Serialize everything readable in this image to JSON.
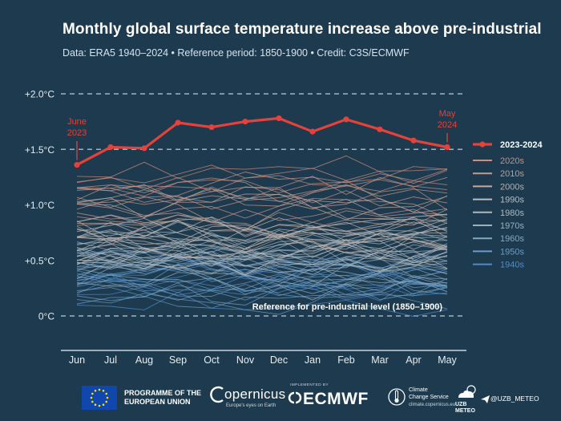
{
  "header": {
    "title": "Monthly global surface temperature increase above pre-industrial",
    "subtitle": "Data: ERA5 1940–2024  •  Reference period: 1850-1900  •  Credit: C3S/ECMWF"
  },
  "chart_data": {
    "type": "line",
    "title": "Monthly global surface temperature increase above pre-industrial",
    "xlabel": "",
    "ylabel": "",
    "categories": [
      "Jun",
      "Jul",
      "Aug",
      "Sep",
      "Oct",
      "Nov",
      "Dec",
      "Jan",
      "Feb",
      "Mar",
      "Apr",
      "May"
    ],
    "y_ticks": [
      {
        "value": 0,
        "label": "0°C"
      },
      {
        "value": 0.5,
        "label": "+0.5°C"
      },
      {
        "value": 1.0,
        "label": "+1.0°C"
      },
      {
        "value": 1.5,
        "label": "+1.5°C"
      },
      {
        "value": 2.0,
        "label": "+2.0°C"
      }
    ],
    "ylim": [
      -0.3,
      2.1
    ],
    "grid": "dashed at 0, +1.5 and +2.0",
    "highlight_series": {
      "name": "2023-2024",
      "color": "#e4423a",
      "values": [
        1.36,
        1.52,
        1.51,
        1.74,
        1.7,
        1.75,
        1.78,
        1.66,
        1.77,
        1.68,
        1.58,
        1.52
      ]
    },
    "annotations": {
      "start_label": [
        "June",
        "2023"
      ],
      "end_label": [
        "May",
        "2024"
      ],
      "reference_label": "Reference for pre-industrial level (1850–1900)"
    },
    "decades": [
      {
        "name": "2020s",
        "color": "#d08d7d",
        "base": 1.2,
        "count": 4
      },
      {
        "name": "2010s",
        "color": "#c89a8c",
        "base": 1.02,
        "count": 10
      },
      {
        "name": "2000s",
        "color": "#c3aba3",
        "base": 0.86,
        "count": 10
      },
      {
        "name": "1990s",
        "color": "#bfbcba",
        "base": 0.72,
        "count": 10
      },
      {
        "name": "1980s",
        "color": "#b0b8be",
        "base": 0.6,
        "count": 10
      },
      {
        "name": "1970s",
        "color": "#9cb0bf",
        "base": 0.5,
        "count": 10
      },
      {
        "name": "1960s",
        "color": "#84a7c2",
        "base": 0.4,
        "count": 10
      },
      {
        "name": "1950s",
        "color": "#6b9dc7",
        "base": 0.32,
        "count": 10
      },
      {
        "name": "1940s",
        "color": "#4f8ccb",
        "base": 0.3,
        "count": 10
      }
    ],
    "legend": "right"
  },
  "footer": {
    "eu_label": [
      "PROGRAMME OF THE",
      "EUROPEAN UNION"
    ],
    "copernicus": "opernicus",
    "copernicus_sub": "Europe's eyes on Earth",
    "ecmwf_impl": "IMPLEMENTED BY",
    "ecmwf": "ECMWF",
    "c3s": [
      "Climate",
      "Change Service"
    ],
    "c3s_url": "climate.copernicus.eu",
    "uzb": [
      "UZB",
      "METEO"
    ],
    "telegram": "@UZB_METEO"
  }
}
